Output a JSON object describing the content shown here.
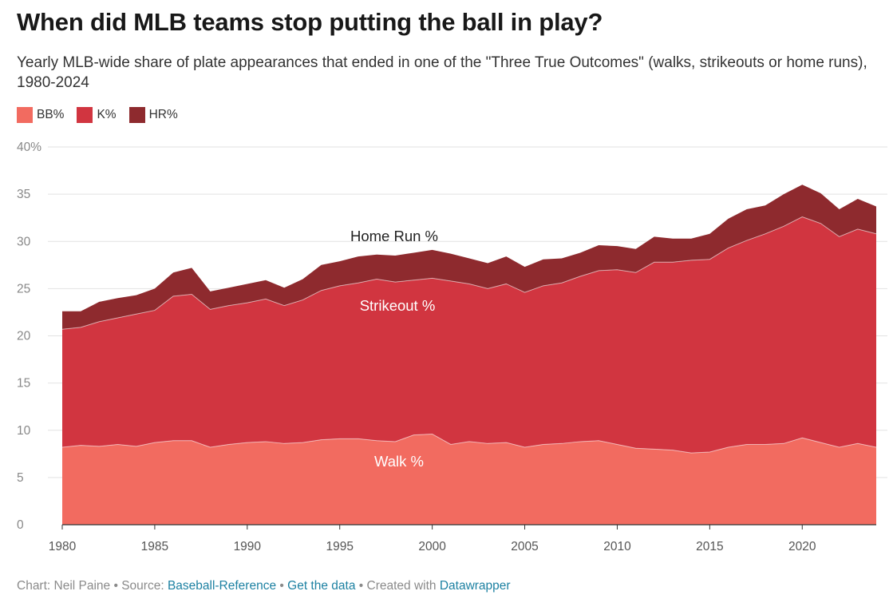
{
  "header": {
    "title": "When did MLB teams stop putting the ball in play?",
    "subtitle": "Yearly MLB-wide share of plate appearances that ended in one of the \"Three True Outcomes\" (walks, strikeouts or home runs), 1980-2024"
  },
  "legend": {
    "bb": "BB%",
    "k": "K%",
    "hr": "HR%"
  },
  "colors": {
    "bb": "#f26b60",
    "k": "#d13540",
    "hr": "#8e2a2e",
    "grid": "#e2e2e2",
    "link": "#1d81a2"
  },
  "annotations": {
    "hr": "Home Run %",
    "k": "Strikeout %",
    "bb": "Walk %"
  },
  "footer": {
    "prefix": "Chart: Neil Paine • Source:",
    "source_link": "Baseball-Reference",
    "sep1": "•",
    "data_link": "Get the data",
    "created": "• Created with",
    "dw_link": "Datawrapper"
  },
  "chart_data": {
    "type": "area",
    "stacked": true,
    "x": [
      1980,
      1981,
      1982,
      1983,
      1984,
      1985,
      1986,
      1987,
      1988,
      1989,
      1990,
      1991,
      1992,
      1993,
      1994,
      1995,
      1996,
      1997,
      1998,
      1999,
      2000,
      2001,
      2002,
      2003,
      2004,
      2005,
      2006,
      2007,
      2008,
      2009,
      2010,
      2011,
      2012,
      2013,
      2014,
      2015,
      2016,
      2017,
      2018,
      2019,
      2020,
      2021,
      2022,
      2023,
      2024
    ],
    "series": [
      {
        "name": "BB%",
        "key": "bb",
        "values": [
          8.2,
          8.4,
          8.3,
          8.5,
          8.3,
          8.7,
          8.9,
          8.9,
          8.2,
          8.5,
          8.7,
          8.8,
          8.6,
          8.7,
          9.0,
          9.1,
          9.1,
          8.9,
          8.8,
          9.5,
          9.6,
          8.5,
          8.8,
          8.6,
          8.7,
          8.2,
          8.5,
          8.6,
          8.8,
          8.9,
          8.5,
          8.1,
          8.0,
          7.9,
          7.6,
          7.7,
          8.2,
          8.5,
          8.5,
          8.6,
          9.2,
          8.7,
          8.2,
          8.6,
          8.2
        ]
      },
      {
        "name": "K%",
        "key": "k",
        "values": [
          12.5,
          12.5,
          13.2,
          13.4,
          14.0,
          14.0,
          15.3,
          15.5,
          14.6,
          14.7,
          14.8,
          15.1,
          14.6,
          15.1,
          15.8,
          16.2,
          16.5,
          17.1,
          16.9,
          16.4,
          16.5,
          17.3,
          16.7,
          16.4,
          16.8,
          16.4,
          16.8,
          17.0,
          17.5,
          18.0,
          18.5,
          18.6,
          19.8,
          19.9,
          20.4,
          20.4,
          21.1,
          21.6,
          22.3,
          23.0,
          23.4,
          23.2,
          22.3,
          22.7,
          22.6
        ]
      },
      {
        "name": "HR%",
        "key": "hr",
        "values": [
          1.9,
          1.7,
          2.1,
          2.1,
          2.0,
          2.3,
          2.5,
          2.8,
          1.9,
          1.9,
          2.0,
          2.0,
          1.9,
          2.2,
          2.7,
          2.6,
          2.8,
          2.6,
          2.8,
          2.9,
          3.0,
          2.9,
          2.7,
          2.7,
          2.9,
          2.7,
          2.8,
          2.6,
          2.5,
          2.7,
          2.5,
          2.5,
          2.7,
          2.5,
          2.3,
          2.7,
          3.1,
          3.3,
          3.0,
          3.4,
          3.4,
          3.2,
          2.9,
          3.2,
          2.9
        ]
      }
    ],
    "ylim": [
      0,
      40
    ],
    "yticks": [
      "40%",
      "35",
      "30",
      "25",
      "20",
      "15",
      "10",
      "5",
      "0"
    ],
    "xticks": [
      "1980",
      "1985",
      "1990",
      "1995",
      "2000",
      "2005",
      "2010",
      "2015",
      "2020"
    ],
    "grid": true,
    "legend_position": "top-left"
  }
}
